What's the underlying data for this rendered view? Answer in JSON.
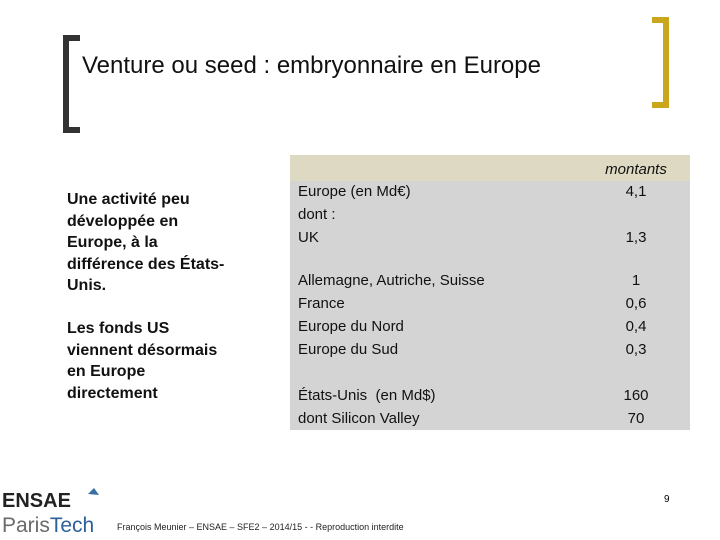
{
  "header": {
    "title": "Venture ou seed : embryonnaire en Europe"
  },
  "left_text": [
    "Une activité peu développée en Europe, à la différence des États-Unis.",
    "Les fonds US viennent désormais en Europe directement"
  ],
  "table": {
    "header": "montants",
    "rows": [
      {
        "label": "Europe (en Md€)",
        "value": "4,1"
      },
      {
        "label": "dont :"
      },
      {
        "label": "UK",
        "value": "1,3"
      },
      {
        "label": "Allemagne, Autriche, Suisse",
        "value": "1"
      },
      {
        "label": "France",
        "value": "0,6"
      },
      {
        "label": "Europe du Nord",
        "value": "0,4"
      },
      {
        "label": "Europe du Sud",
        "value": "0,3"
      },
      {
        "label": "États-Unis  (en Md$)",
        "value": "160"
      },
      {
        "label": "dont Silicon Valley",
        "value": "70"
      }
    ]
  },
  "footer": {
    "text": "François Meunier – ENSAE – SFE2 – 2014/15 - - Reproduction interdite",
    "page": "9"
  },
  "logo": {
    "line1": "ENSAE",
    "line2a": "Paris",
    "line2b": "Tech"
  }
}
